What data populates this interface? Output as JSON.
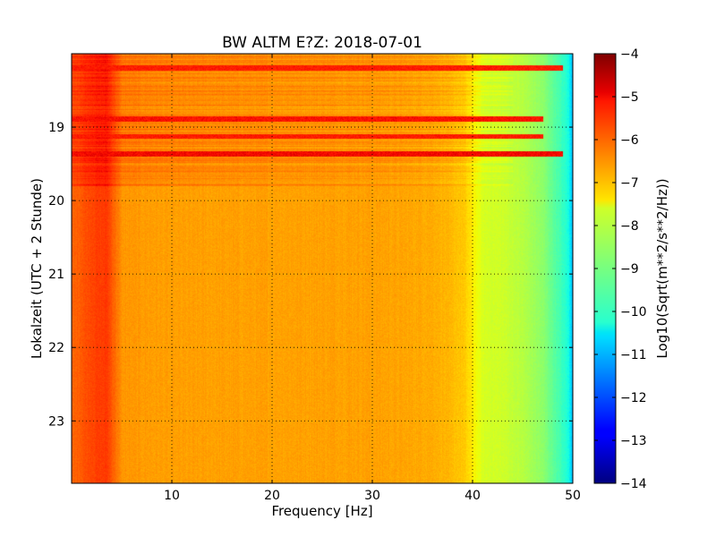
{
  "chart_data": {
    "type": "heatmap",
    "title": "BW ALTM E?Z: 2018-07-01",
    "xlabel": "Frequency [Hz]",
    "ylabel": "Lokalzeit (UTC + 2 Stunde)",
    "xlim": [
      0,
      50
    ],
    "ylim": [
      18.0,
      23.85
    ],
    "y_inverted": true,
    "x_ticks": [
      10,
      20,
      30,
      40,
      50
    ],
    "x_tick_labels": [
      "10",
      "20",
      "30",
      "40",
      "50"
    ],
    "y_ticks": [
      19,
      20,
      21,
      22,
      23
    ],
    "y_tick_labels": [
      "19",
      "20",
      "21",
      "22",
      "23"
    ],
    "grid": true,
    "colorbar": {
      "label": "Log10(Sqrt(m**2/s**2/Hz))",
      "range": [
        -14,
        -4
      ],
      "ticks": [
        -4,
        -5,
        -6,
        -7,
        -8,
        -9,
        -10,
        -11,
        -12,
        -13,
        -14
      ],
      "tick_labels": [
        "−4",
        "−5",
        "−6",
        "−7",
        "−8",
        "−9",
        "−10",
        "−11",
        "−12",
        "−13",
        "−14"
      ],
      "colormap": "jet"
    },
    "frequency_profile_hz": [
      0.5,
      2,
      3.5,
      5,
      10,
      20,
      30,
      36,
      39,
      40,
      41,
      43,
      45,
      47,
      48.5,
      49.5,
      50
    ],
    "baseline_log10_psd": [
      -5.9,
      -5.6,
      -5.5,
      -6.5,
      -6.6,
      -6.6,
      -6.6,
      -6.7,
      -7.0,
      -7.4,
      -7.9,
      -8.0,
      -8.3,
      -8.8,
      -9.6,
      -10.2,
      -11.0
    ],
    "active_period_hours": [
      18.0,
      19.8
    ],
    "active_period_log10_psd": -5.4,
    "strong_bands": [
      {
        "time_h": 18.19,
        "freq_max_hz": 49,
        "level": -5.2
      },
      {
        "time_h": 18.88,
        "freq_max_hz": 47,
        "level": -5.1
      },
      {
        "time_h": 19.12,
        "freq_max_hz": 47,
        "level": -5.2
      },
      {
        "time_h": 19.36,
        "freq_max_hz": 49,
        "level": -5.0
      }
    ]
  }
}
